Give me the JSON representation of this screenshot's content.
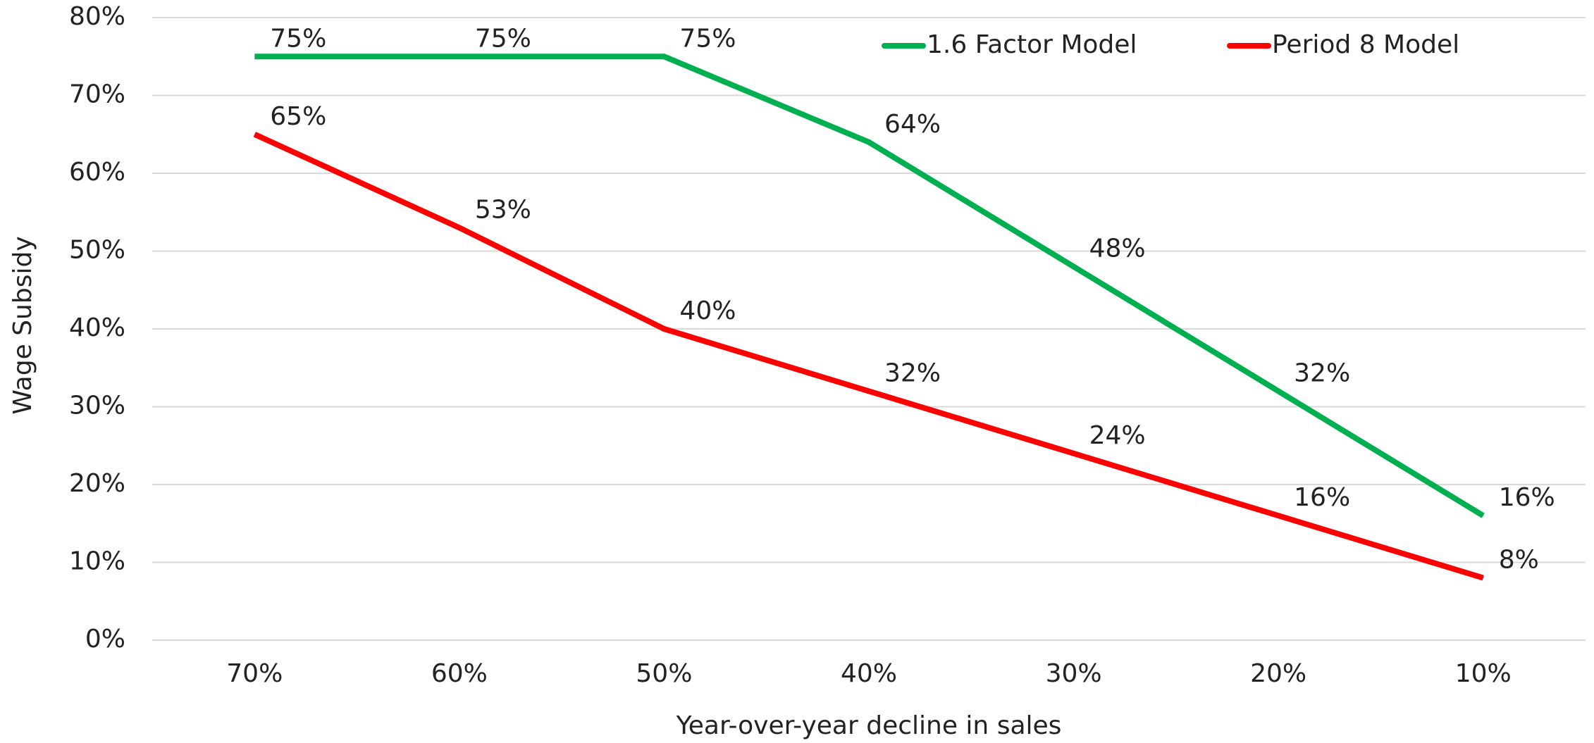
{
  "chart_data": {
    "type": "line",
    "x_label": "Year-over-year decline in sales",
    "y_label": "Wage Subsidy",
    "categories": [
      "70%",
      "60%",
      "50%",
      "40%",
      "30%",
      "20%",
      "10%"
    ],
    "series": [
      {
        "name": "1.6 Factor Model",
        "color": "#00b050",
        "values": [
          75,
          75,
          75,
          64,
          48,
          32,
          16
        ],
        "value_labels": [
          "75%",
          "75%",
          "75%",
          "64%",
          "48%",
          "32%",
          "16%"
        ]
      },
      {
        "name": "Period 8 Model",
        "color": "#ff0000",
        "values": [
          65,
          53,
          40,
          32,
          24,
          16,
          8
        ],
        "value_labels": [
          "65%",
          "53%",
          "40%",
          "32%",
          "24%",
          "16%",
          "8%"
        ]
      }
    ],
    "ylim": [
      0,
      80
    ],
    "yticks": [
      {
        "value": 0,
        "label": "0%"
      },
      {
        "value": 10,
        "label": "10%"
      },
      {
        "value": 20,
        "label": "20%"
      },
      {
        "value": 30,
        "label": "30%"
      },
      {
        "value": 40,
        "label": "40%"
      },
      {
        "value": 50,
        "label": "50%"
      },
      {
        "value": 60,
        "label": "60%"
      },
      {
        "value": 70,
        "label": "70%"
      },
      {
        "value": 80,
        "label": "80%"
      }
    ],
    "grid": true,
    "legend": "top-right"
  }
}
